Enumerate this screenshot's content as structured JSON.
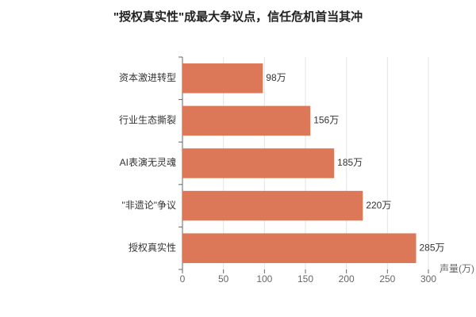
{
  "chart_data": {
    "type": "bar",
    "orientation": "horizontal",
    "title": "\"授权真实性\"成最大争议点，信任危机首当其冲",
    "categories": [
      "资本激进转型",
      "行业生态撕裂",
      "AI表演无灵魂",
      "\"非遗论\"争议",
      "授权真实性"
    ],
    "values": [
      98,
      156,
      185,
      220,
      285
    ],
    "value_labels": [
      "98万",
      "156万",
      "185万",
      "220万",
      "285万"
    ],
    "color": "#dc7857",
    "x_label": "声量(万)",
    "xlim": [
      0,
      300
    ],
    "xticks": [
      0,
      50,
      100,
      150,
      200,
      250,
      300
    ],
    "grid": true
  }
}
